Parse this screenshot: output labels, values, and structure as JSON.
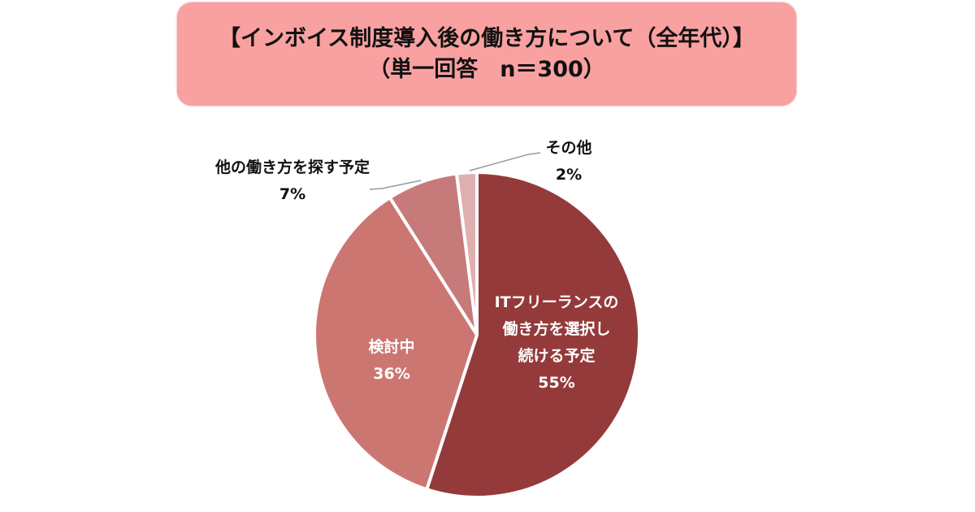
{
  "chart_data": {
    "type": "pie",
    "title": "【インボイス制度導入後の働き方について（全年代）】",
    "subtitle": "（単一回答　n＝300）",
    "slices": [
      {
        "label_lines": [
          "ITフリーランスの",
          "働き方を選択し",
          "続ける予定"
        ],
        "value": 55,
        "value_label": "55%",
        "color": "#943a3a",
        "label_color": "#ffffff"
      },
      {
        "label_lines": [
          "検討中"
        ],
        "value": 36,
        "value_label": "36%",
        "color": "#cc7672",
        "label_color": "#ffffff"
      },
      {
        "label_lines": [
          "他の働き方を探す予定"
        ],
        "value": 7,
        "value_label": "7%",
        "color": "#c77a7a",
        "label_color": "#111111"
      },
      {
        "label_lines": [
          "その他"
        ],
        "value": 2,
        "value_label": "2%",
        "color": "#e0b0b0",
        "label_color": "#111111"
      }
    ],
    "start_angle": "top",
    "direction": "clockwise"
  }
}
